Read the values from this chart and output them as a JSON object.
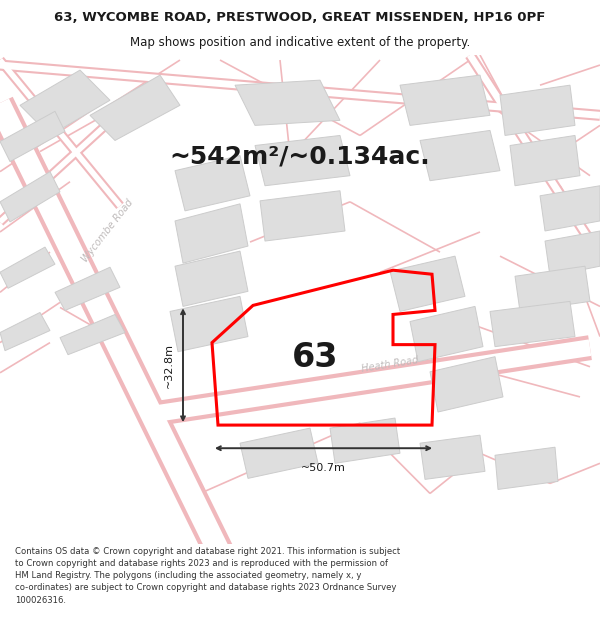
{
  "title_line1": "63, WYCOMBE ROAD, PRESTWOOD, GREAT MISSENDEN, HP16 0PF",
  "title_line2": "Map shows position and indicative extent of the property.",
  "area_text": "~542m²/~0.134ac.",
  "label_63": "63",
  "dim_width": "~50.7m",
  "dim_height": "~32.8m",
  "footer_text": "Contains OS data © Crown copyright and database right 2021. This information is subject\nto Crown copyright and database rights 2023 and is reproduced with the permission of\nHM Land Registry. The polygons (including the associated geometry, namely x, y\nco-ordinates) are subject to Crown copyright and database rights 2023 Ordnance Survey\n100026316.",
  "map_bg": "#f8f6f6",
  "road_outline_color": "#f0b8bc",
  "road_fill_color": "#ffffff",
  "block_color": "#dedede",
  "block_edge": "#cccccc",
  "plot_color": "#ff0000",
  "text_dark": "#1a1a1a",
  "road_label_color": "#c0bcbc",
  "dim_line_color": "#333333",
  "title_fontsize": 9.5,
  "subtitle_fontsize": 8.5,
  "area_fontsize": 18,
  "label_fontsize": 24,
  "dim_fontsize": 8,
  "road_label_fontsize": 7,
  "footer_fontsize": 6.1
}
